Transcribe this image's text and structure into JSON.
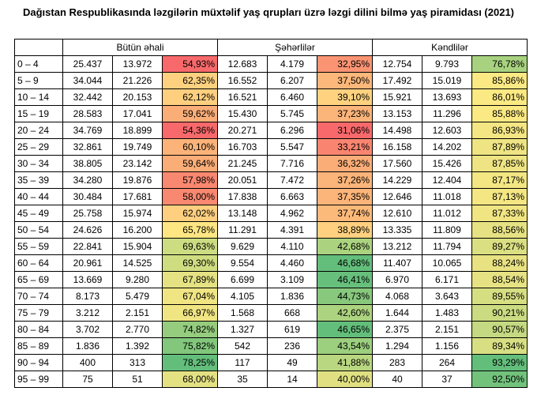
{
  "title": "Dağıstan Respublikasında ləzgilərin müxtəlif yaş qrupları üzrə ləzgi dilini bilmə yaş piramidası (2021)",
  "groups": [
    "Bütün əhali",
    "Şəhərlilər",
    "Kəndlilər"
  ],
  "rows": [
    {
      "age": "0 – 4",
      "cells": [
        "25.437",
        "13.972",
        "54,93%",
        "12.683",
        "4.179",
        "32,95%",
        "12.754",
        "9.793",
        "76,78%"
      ],
      "colors": [
        "#f8696b",
        "#fa9473",
        "#a8d27f"
      ]
    },
    {
      "age": "5 – 9",
      "cells": [
        "34.044",
        "21.226",
        "62,35%",
        "16.552",
        "6.207",
        "37,50%",
        "17.492",
        "15.019",
        "85,86%"
      ],
      "colors": [
        "#fdd17f",
        "#fcb77a",
        "#fbe983"
      ]
    },
    {
      "age": "10 – 14",
      "cells": [
        "32.442",
        "20.153",
        "62,12%",
        "16.521",
        "6.460",
        "39,10%",
        "15.921",
        "13.693",
        "86,01%"
      ],
      "colors": [
        "#fdcf7f",
        "#fed27f",
        "#fbe983"
      ]
    },
    {
      "age": "15 – 19",
      "cells": [
        "28.583",
        "17.041",
        "59,62%",
        "15.430",
        "5.745",
        "37,23%",
        "13.153",
        "11.296",
        "85,88%"
      ],
      "colors": [
        "#fbad78",
        "#fbb479",
        "#fbe983"
      ]
    },
    {
      "age": "20 – 24",
      "cells": [
        "34.769",
        "18.899",
        "54,36%",
        "20.271",
        "6.296",
        "31,06%",
        "14.498",
        "12.603",
        "86,93%"
      ],
      "colors": [
        "#f8696b",
        "#f8696b",
        "#f4e683"
      ]
    },
    {
      "age": "25 – 29",
      "cells": [
        "32.861",
        "19.749",
        "60,10%",
        "16.703",
        "5.547",
        "33,21%",
        "16.158",
        "14.202",
        "87,89%"
      ],
      "colors": [
        "#fbb379",
        "#f98570",
        "#eee483"
      ]
    },
    {
      "age": "30 – 34",
      "cells": [
        "38.805",
        "23.142",
        "59,64%",
        "21.245",
        "7.716",
        "36,32%",
        "17.560",
        "15.426",
        "87,85%"
      ],
      "colors": [
        "#fbad78",
        "#fbad78",
        "#eee483"
      ]
    },
    {
      "age": "35 – 39",
      "cells": [
        "34.280",
        "19.876",
        "57,98%",
        "20.051",
        "7.472",
        "37,26%",
        "14.229",
        "12.404",
        "87,17%"
      ],
      "colors": [
        "#f98870",
        "#fbb479",
        "#f3e683"
      ]
    },
    {
      "age": "40 – 44",
      "cells": [
        "30.484",
        "17.681",
        "58,00%",
        "17.838",
        "6.663",
        "37,35%",
        "12.646",
        "11.018",
        "87,13%"
      ],
      "colors": [
        "#f98870",
        "#fbb479",
        "#f3e683"
      ]
    },
    {
      "age": "45 – 49",
      "cells": [
        "25.758",
        "15.974",
        "62,02%",
        "13.148",
        "4.962",
        "37,74%",
        "12.610",
        "11.012",
        "87,33%"
      ],
      "colors": [
        "#fdcf7f",
        "#fcba7a",
        "#f1e583"
      ]
    },
    {
      "age": "50 – 54",
      "cells": [
        "24.626",
        "16.200",
        "65,78%",
        "11.291",
        "4.391",
        "38,89%",
        "13.335",
        "11.809",
        "88,56%"
      ],
      "colors": [
        "#fee683",
        "#fed07f",
        "#e6e283"
      ]
    },
    {
      "age": "55 – 59",
      "cells": [
        "22.841",
        "15.904",
        "69,63%",
        "9.629",
        "4.110",
        "42,68%",
        "13.212",
        "11.794",
        "89,27%"
      ],
      "colors": [
        "#cbdc81",
        "#abd37f",
        "#dadf82"
      ]
    },
    {
      "age": "60 – 64",
      "cells": [
        "20.961",
        "14.525",
        "69,30%",
        "9.554",
        "4.460",
        "46,68%",
        "11.407",
        "10.065",
        "88,24%"
      ],
      "colors": [
        "#cfdd81",
        "#63be7b",
        "#e9e283"
      ]
    },
    {
      "age": "65 – 69",
      "cells": [
        "13.669",
        "9.280",
        "67,89%",
        "6.699",
        "3.109",
        "46,41%",
        "6.970",
        "6.171",
        "88,54%"
      ],
      "colors": [
        "#e5e283",
        "#67bf7c",
        "#e6e283"
      ]
    },
    {
      "age": "70 – 74",
      "cells": [
        "8.173",
        "5.479",
        "67,04%",
        "4.105",
        "1.836",
        "44,73%",
        "4.068",
        "3.643",
        "89,55%"
      ],
      "colors": [
        "#f0e583",
        "#87c87d",
        "#d6de82"
      ]
    },
    {
      "age": "75 – 79",
      "cells": [
        "3.212",
        "2.151",
        "66,97%",
        "1.568",
        "668",
        "42,60%",
        "1.644",
        "1.483",
        "90,21%"
      ],
      "colors": [
        "#f0e583",
        "#acd37f",
        "#cbdb81"
      ]
    },
    {
      "age": "80 – 84",
      "cells": [
        "3.702",
        "2.770",
        "74,82%",
        "1.327",
        "619",
        "46,65%",
        "2.375",
        "2.151",
        "90,57%"
      ],
      "colors": [
        "#95cc7e",
        "#63be7b",
        "#c4d981"
      ]
    },
    {
      "age": "85 – 89",
      "cells": [
        "1.836",
        "1.392",
        "75,82%",
        "542",
        "236",
        "43,54%",
        "1.294",
        "1.156",
        "89,34%"
      ],
      "colors": [
        "#82c77c",
        "#9ccf7e",
        "#d8df82"
      ]
    },
    {
      "age": "90 – 94",
      "cells": [
        "400",
        "313",
        "78,25%",
        "117",
        "49",
        "41,88%",
        "283",
        "264",
        "93,29%"
      ],
      "colors": [
        "#63be7b",
        "#b9d780",
        "#63be7b"
      ]
    },
    {
      "age": "95 – 99",
      "cells": [
        "75",
        "51",
        "68,00%",
        "35",
        "14",
        "40,00%",
        "40",
        "37",
        "92,50%"
      ],
      "colors": [
        "#e4e183",
        "#e0e082",
        "#72c27c"
      ]
    }
  ]
}
